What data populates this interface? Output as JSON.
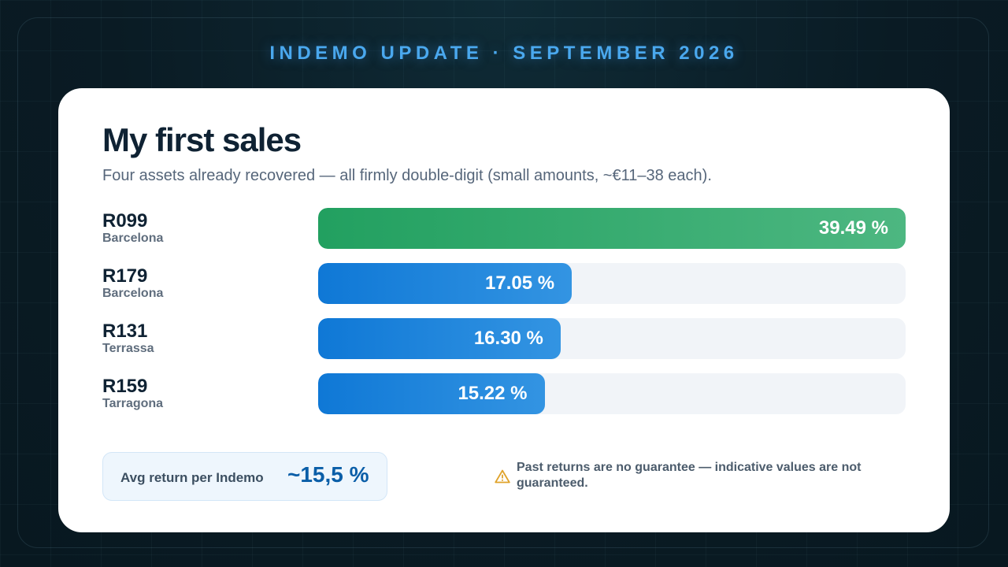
{
  "header": {
    "title": "INDEMO UPDATE · SEPTEMBER 2026"
  },
  "card": {
    "title": "My first sales",
    "subtitle": "Four assets already recovered — all firmly double-digit (small amounts, ~€11–38 each)."
  },
  "chart_data": {
    "type": "bar",
    "orientation": "horizontal",
    "categories": [
      "R099",
      "R179",
      "R131",
      "R159"
    ],
    "sublabels": [
      "Barcelona",
      "Barcelona",
      "Terrassa",
      "Tarragona"
    ],
    "values": [
      39.49,
      17.05,
      16.3,
      15.22
    ],
    "value_labels": [
      "39.49 %",
      "17.05 %",
      "16.30 %",
      "15.22 %"
    ],
    "unit": "%",
    "xlim": [
      0,
      39.49
    ],
    "grid": false,
    "colors": {
      "top": "#22a060",
      "default": "#1a82da",
      "track": "#f1f4f8"
    }
  },
  "summary": {
    "label": "Avg return per Indemo",
    "value": "~15,5 %"
  },
  "disclaimer": {
    "icon": "warning-icon",
    "text": "Past returns are no guarantee — indicative values are not guaranteed."
  }
}
